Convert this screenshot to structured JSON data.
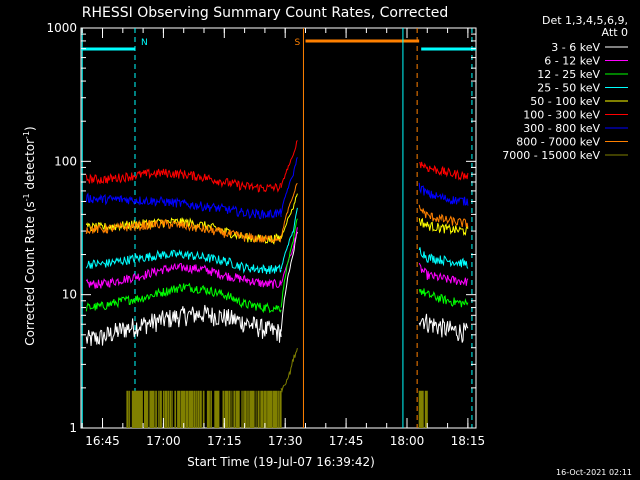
{
  "chart_data": {
    "type": "line",
    "title": "RHESSI Observing Summary Count Rates, Corrected",
    "xlabel": "Start Time (19-Jul-07 16:39:42)",
    "ylabel_main": "Corrected Count Rate (s",
    "ylabel_sup1": "-1",
    "ylabel_mid": " detector",
    "ylabel_sup2": "-1",
    "ylabel_end": ")",
    "yscale": "log",
    "ylim": [
      1,
      1000
    ],
    "xlim": [
      "16:39:42",
      "18:17:00"
    ],
    "x_ticks": [
      "16:45",
      "17:00",
      "17:15",
      "17:30",
      "17:45",
      "18:00",
      "18:15"
    ],
    "y_ticks": [
      "1",
      "10",
      "100",
      "1000"
    ],
    "footer_date": "16-Oct-2021 02:11",
    "legend_header": [
      "Det 1,3,4,5,6,9,",
      "Att 0"
    ],
    "legend_position": "right",
    "flags": [
      {
        "label": "N",
        "color": "#00ffff",
        "start": "16:39:42",
        "end": "16:53:00"
      },
      {
        "label": "S",
        "color": "#ff8000",
        "start": "17:35:00",
        "end": "18:03:00"
      },
      {
        "label": "",
        "color": "#00ffff",
        "start": "18:03:30",
        "end": "18:17:00"
      }
    ],
    "vertical_lines": [
      {
        "time": "16:40:00",
        "color": "#00ffff",
        "style": "solid"
      },
      {
        "time": "16:53:00",
        "color": "#00ffff",
        "style": "dashed"
      },
      {
        "time": "17:34:30",
        "color": "#ff8000",
        "style": "solid"
      },
      {
        "time": "17:59:00",
        "color": "#00ffff",
        "style": "solid"
      },
      {
        "time": "18:02:30",
        "color": "#ff8000",
        "style": "dashed"
      },
      {
        "time": "18:16:00",
        "color": "#00ffff",
        "style": "dashed"
      }
    ],
    "series": [
      {
        "name": "3 - 6 keV",
        "color": "#ffffff",
        "data1": [
          [
            "16:41",
            4.6
          ],
          [
            "16:45",
            4.8
          ],
          [
            "16:50",
            5.5
          ],
          [
            "16:55",
            6
          ],
          [
            "17:00",
            6.5
          ],
          [
            "17:05",
            7
          ],
          [
            "17:10",
            7.2
          ],
          [
            "17:15",
            6.8
          ],
          [
            "17:20",
            6.2
          ],
          [
            "17:25",
            5.5
          ],
          [
            "17:29",
            5.2
          ]
        ],
        "spike": [
          [
            "17:29",
            5.2
          ],
          [
            "17:32",
            20
          ],
          [
            "17:33",
            30
          ]
        ],
        "data2": [
          [
            "18:03",
            7
          ],
          [
            "18:05",
            6.2
          ],
          [
            "18:10",
            5.5
          ],
          [
            "18:15",
            5.2
          ]
        ]
      },
      {
        "name": "6 - 12 keV",
        "color": "#ff00ff",
        "data1": [
          [
            "16:41",
            12
          ],
          [
            "16:45",
            12
          ],
          [
            "16:50",
            13
          ],
          [
            "16:55",
            14
          ],
          [
            "17:00",
            15.5
          ],
          [
            "17:05",
            16
          ],
          [
            "17:10",
            15.5
          ],
          [
            "17:15",
            14
          ],
          [
            "17:20",
            13
          ],
          [
            "17:25",
            12
          ],
          [
            "17:29",
            12
          ]
        ],
        "spike": [
          [
            "17:29",
            12
          ],
          [
            "17:32",
            22
          ],
          [
            "17:33",
            32
          ]
        ],
        "data2": [
          [
            "18:03",
            16
          ],
          [
            "18:05",
            14
          ],
          [
            "18:10",
            13
          ],
          [
            "18:15",
            12.5
          ]
        ]
      },
      {
        "name": "12 - 25 keV",
        "color": "#00ff00",
        "data1": [
          [
            "16:41",
            8
          ],
          [
            "16:45",
            8.2
          ],
          [
            "16:50",
            9
          ],
          [
            "16:55",
            9.5
          ],
          [
            "17:00",
            10.5
          ],
          [
            "17:05",
            11.5
          ],
          [
            "17:10",
            11
          ],
          [
            "17:15",
            10
          ],
          [
            "17:20",
            8.5
          ],
          [
            "17:25",
            8
          ],
          [
            "17:29",
            8
          ]
        ],
        "spike": [
          [
            "17:29",
            8
          ],
          [
            "17:32",
            25
          ],
          [
            "17:33",
            38
          ]
        ],
        "data2": [
          [
            "18:03",
            11
          ],
          [
            "18:05",
            10
          ],
          [
            "18:10",
            9
          ],
          [
            "18:15",
            8.5
          ]
        ]
      },
      {
        "name": "25 - 50 keV",
        "color": "#00ffff",
        "data1": [
          [
            "16:41",
            17
          ],
          [
            "16:45",
            17
          ],
          [
            "16:50",
            18
          ],
          [
            "16:55",
            19
          ],
          [
            "17:00",
            20
          ],
          [
            "17:05",
            20
          ],
          [
            "17:10",
            19
          ],
          [
            "17:15",
            18
          ],
          [
            "17:20",
            16
          ],
          [
            "17:25",
            15.5
          ],
          [
            "17:29",
            15.5
          ]
        ],
        "spike": [
          [
            "17:29",
            15.5
          ],
          [
            "17:32",
            30
          ],
          [
            "17:33",
            44
          ]
        ],
        "data2": [
          [
            "18:03",
            22
          ],
          [
            "18:05",
            19
          ],
          [
            "18:10",
            18
          ],
          [
            "18:15",
            17
          ]
        ]
      },
      {
        "name": "50 - 100 keV",
        "color": "#ffff00",
        "data1": [
          [
            "16:41",
            32
          ],
          [
            "16:45",
            32
          ],
          [
            "16:50",
            33
          ],
          [
            "16:55",
            34
          ],
          [
            "17:00",
            35
          ],
          [
            "17:05",
            35
          ],
          [
            "17:10",
            33
          ],
          [
            "17:15",
            30
          ],
          [
            "17:20",
            27
          ],
          [
            "17:25",
            26
          ],
          [
            "17:29",
            26.5
          ]
        ],
        "spike": [
          [
            "17:29",
            26.5
          ],
          [
            "17:32",
            45
          ],
          [
            "17:33",
            58
          ]
        ],
        "data2": [
          [
            "18:03",
            36
          ],
          [
            "18:05",
            33
          ],
          [
            "18:10",
            31
          ],
          [
            "18:15",
            30
          ]
        ]
      },
      {
        "name": "100 - 300 keV",
        "color": "#ff0000",
        "data1": [
          [
            "16:41",
            74
          ],
          [
            "16:45",
            73
          ],
          [
            "16:50",
            76
          ],
          [
            "16:55",
            80
          ],
          [
            "17:00",
            82
          ],
          [
            "17:05",
            80
          ],
          [
            "17:10",
            76
          ],
          [
            "17:15",
            70
          ],
          [
            "17:20",
            65
          ],
          [
            "17:25",
            63
          ],
          [
            "17:29",
            64
          ]
        ],
        "spike": [
          [
            "17:29",
            64
          ],
          [
            "17:32",
            110
          ],
          [
            "17:33",
            145
          ]
        ],
        "data2": [
          [
            "18:03",
            98
          ],
          [
            "18:05",
            90
          ],
          [
            "18:10",
            82
          ],
          [
            "18:15",
            77
          ]
        ]
      },
      {
        "name": "300 - 800 keV",
        "color": "#0000ff",
        "data1": [
          [
            "16:41",
            53
          ],
          [
            "16:45",
            52
          ],
          [
            "16:50",
            52
          ],
          [
            "16:55",
            51
          ],
          [
            "17:00",
            50
          ],
          [
            "17:05",
            48
          ],
          [
            "17:10",
            46
          ],
          [
            "17:15",
            44
          ],
          [
            "17:20",
            41
          ],
          [
            "17:25",
            40
          ],
          [
            "17:29",
            41
          ]
        ],
        "spike": [
          [
            "17:29",
            41
          ],
          [
            "17:32",
            80
          ],
          [
            "17:33",
            108
          ]
        ],
        "data2": [
          [
            "18:03",
            65
          ],
          [
            "18:05",
            57
          ],
          [
            "18:10",
            52
          ],
          [
            "18:15",
            50
          ]
        ]
      },
      {
        "name": "800 - 7000 keV",
        "color": "#ff8000",
        "data1": [
          [
            "16:41",
            31
          ],
          [
            "16:45",
            31
          ],
          [
            "16:50",
            32
          ],
          [
            "16:55",
            33
          ],
          [
            "17:00",
            34
          ],
          [
            "17:05",
            33
          ],
          [
            "17:10",
            31
          ],
          [
            "17:15",
            29
          ],
          [
            "17:20",
            27
          ],
          [
            "17:25",
            26
          ],
          [
            "17:29",
            27
          ]
        ],
        "spike": [
          [
            "17:29",
            27
          ],
          [
            "17:32",
            55
          ],
          [
            "17:33",
            70
          ]
        ],
        "data2": [
          [
            "18:03",
            45
          ],
          [
            "18:05",
            39
          ],
          [
            "18:10",
            36
          ],
          [
            "18:15",
            34
          ]
        ]
      },
      {
        "name": "7000 - 15000 keV",
        "color": "#808000",
        "data1": [
          [
            "16:51",
            1.9
          ],
          [
            "16:55",
            1.9
          ],
          [
            "17:00",
            1.9
          ],
          [
            "17:05",
            1.9
          ],
          [
            "17:10",
            1.9
          ],
          [
            "17:15",
            1.9
          ],
          [
            "17:20",
            1.9
          ],
          [
            "17:25",
            1.9
          ],
          [
            "17:29",
            1.9
          ]
        ],
        "spike": [
          [
            "17:29",
            1.9
          ],
          [
            "17:31",
            2.5
          ],
          [
            "17:33",
            4
          ]
        ],
        "data2": [
          [
            "18:03",
            1.9
          ],
          [
            "18:05",
            1.9
          ]
        ]
      }
    ]
  }
}
